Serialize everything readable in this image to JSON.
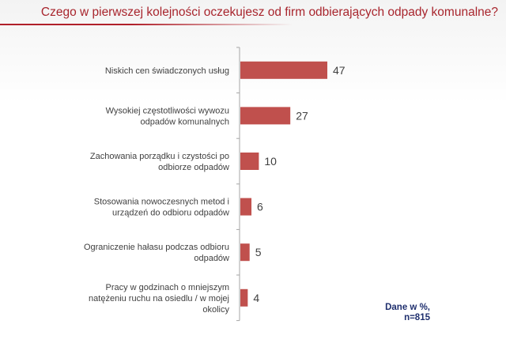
{
  "header": {
    "title": "Czego w pierwszej kolejności oczekujesz od firm odbierających odpady komunalne?"
  },
  "chart_data": {
    "type": "bar",
    "orientation": "horizontal",
    "title": "Czego w pierwszej kolejności oczekujesz od firm odbierających odpady komunalne?",
    "categories": [
      [
        "Niskich cen świadczonych usług"
      ],
      [
        "Wysokiej częstotliwości wywozu",
        "odpadów komunalnych"
      ],
      [
        "Zachowania porządku i czystości po",
        "odbiorze odpadów"
      ],
      [
        "Stosowania nowoczesnych metod i",
        "urządzeń do odbioru odpadów"
      ],
      [
        "Ograniczenie hałasu podczas odbioru",
        "odpadów"
      ],
      [
        "Pracy w godzinach o mniejszym",
        "natężeniu ruchu na osiedlu / w mojej",
        "okolicy"
      ]
    ],
    "values": [
      47,
      27,
      10,
      6,
      5,
      4
    ],
    "xlim": [
      0,
      50
    ],
    "bar_color": "#c0504d",
    "grid": false
  },
  "note": {
    "line1": "Dane w %,",
    "line2": "n=815"
  }
}
